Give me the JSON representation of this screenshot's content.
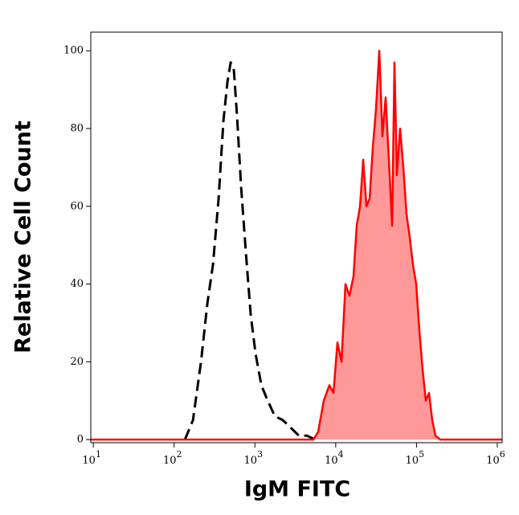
{
  "chart_data": {
    "type": "line",
    "xlabel": "IgM FITC",
    "ylabel": "Relative Cell Count",
    "xscale": "log",
    "xlim": [
      9.3,
      1148000
    ],
    "ylim": [
      -0.8,
      104.8
    ],
    "xticks": [
      {
        "value": 10,
        "label": "10",
        "exponent": "1"
      },
      {
        "value": 100,
        "label": "10",
        "exponent": "2"
      },
      {
        "value": 1000,
        "label": "10",
        "exponent": "3"
      },
      {
        "value": 10000,
        "label": "10",
        "exponent": "4"
      },
      {
        "value": 100000,
        "label": "10",
        "exponent": "5"
      },
      {
        "value": 1000000,
        "label": "10",
        "exponent": "6"
      }
    ],
    "yticks": [
      0,
      20,
      40,
      60,
      80,
      100
    ],
    "series": [
      {
        "color": "#000000",
        "dash": "dashed",
        "fill": null,
        "x": [
          136,
          171,
          215,
          258,
          303,
          355,
          408,
          457,
          501,
          549,
          601,
          675,
          774,
          888,
          1020,
          1200,
          1440,
          1770,
          2220,
          2790,
          3510,
          4410,
          5540
        ],
        "values": [
          0,
          5,
          20,
          35,
          45,
          62,
          82,
          92,
          97,
          95,
          83,
          65,
          48,
          32,
          22,
          14,
          10,
          6,
          5,
          3,
          1,
          1,
          0
        ]
      },
      {
        "color": "#ff0000",
        "dash": "solid",
        "fill": "#ff9999",
        "x": [
          9.3,
          5300,
          6070,
          7120,
          8360,
          9380,
          10500,
          11800,
          13200,
          14800,
          16600,
          18200,
          20000,
          21900,
          24000,
          26300,
          28800,
          31500,
          34600,
          37900,
          41500,
          45500,
          49900,
          53400,
          57200,
          62700,
          68700,
          75300,
          82500,
          90400,
          99100,
          108600,
          119000,
          130400,
          142900,
          156600,
          171700,
          196900,
          1148000
        ],
        "values": [
          0,
          0,
          2,
          10,
          14,
          12,
          25,
          20,
          40,
          37,
          42,
          55,
          60,
          72,
          60,
          62,
          75,
          85,
          100,
          78,
          88,
          72,
          55,
          97,
          68,
          80,
          70,
          58,
          52,
          45,
          40,
          28,
          18,
          10,
          12,
          5,
          1,
          0,
          0
        ]
      }
    ]
  }
}
